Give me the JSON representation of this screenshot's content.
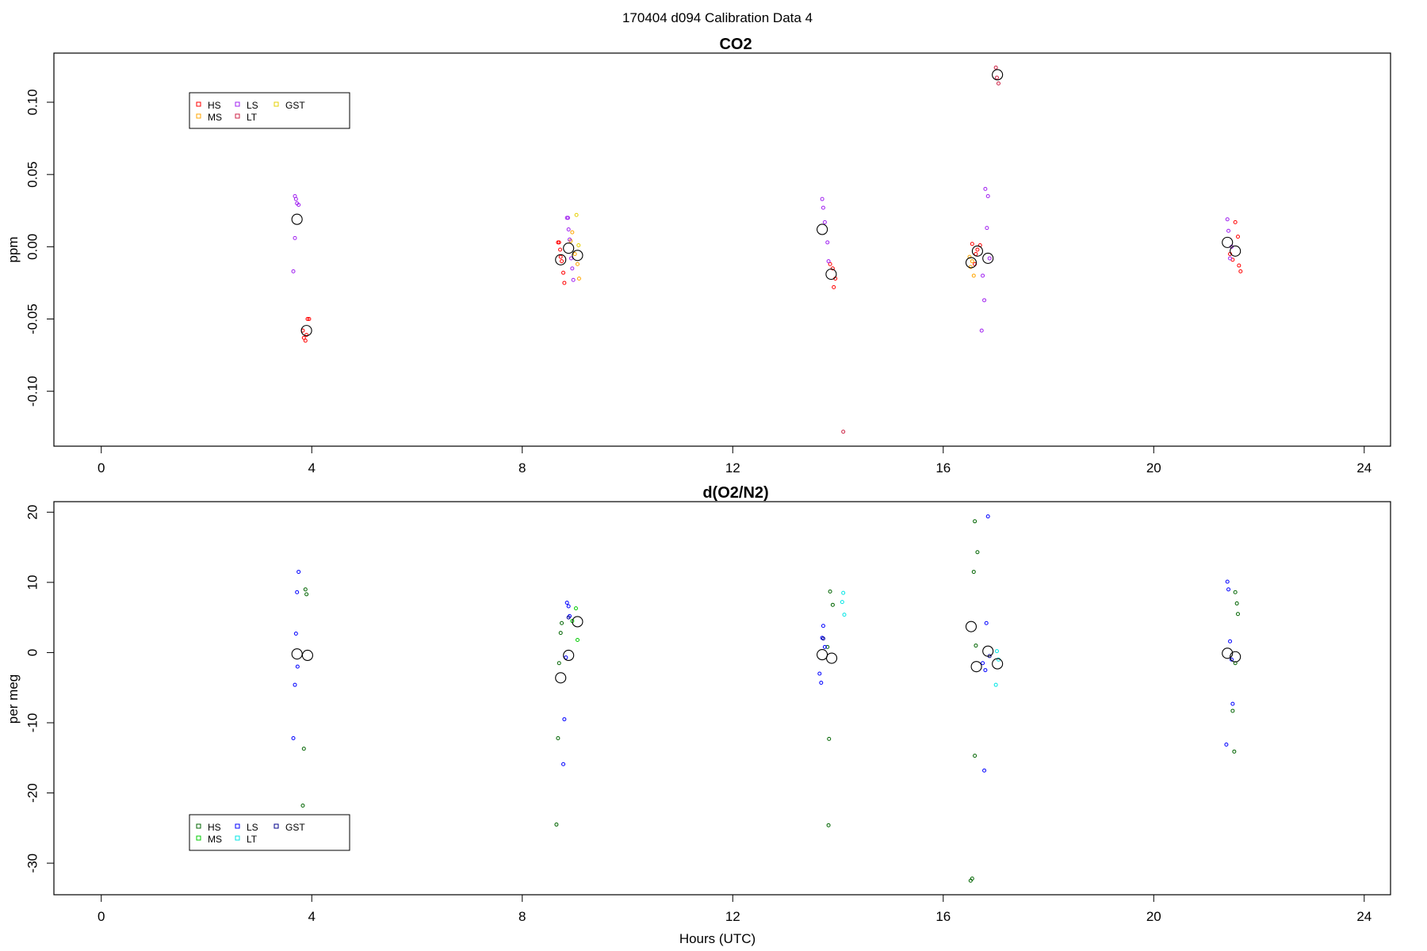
{
  "figure": {
    "title": "170404   d094   Calibration Data 4"
  },
  "chart_data": [
    {
      "type": "scatter",
      "title": "CO2",
      "xlabel": "",
      "ylabel": "ppm",
      "xlim": [
        -0.9,
        24.5
      ],
      "ylim": [
        -0.138,
        0.134
      ],
      "xticks": [
        0,
        4,
        8,
        12,
        16,
        20,
        24
      ],
      "yticks": [
        -0.1,
        -0.05,
        0.0,
        0.05,
        0.1
      ],
      "ytick_labels": [
        "-0.10",
        "-0.05",
        "0.00",
        "0.05",
        "0.10"
      ],
      "grid": false,
      "legend_position": "top-left",
      "legend": [
        "HS",
        "MS",
        "LS",
        "LT",
        "GST"
      ],
      "series": [
        {
          "name": "HS",
          "color": "#ff0000",
          "points": [
            [
              3.85,
              -0.063
            ],
            [
              3.9,
              -0.061
            ],
            [
              3.92,
              -0.05
            ],
            [
              3.88,
              -0.065
            ],
            [
              3.95,
              -0.05
            ],
            [
              3.83,
              -0.058
            ],
            [
              8.7,
              0.003
            ],
            [
              8.72,
              -0.002
            ],
            [
              8.75,
              -0.01
            ],
            [
              8.78,
              -0.018
            ],
            [
              8.8,
              -0.025
            ],
            [
              8.68,
              0.003
            ],
            [
              8.73,
              -0.007
            ],
            [
              13.85,
              -0.012
            ],
            [
              13.9,
              -0.015
            ],
            [
              13.95,
              -0.022
            ],
            [
              13.92,
              -0.028
            ],
            [
              16.55,
              0.002
            ],
            [
              16.62,
              -0.005
            ],
            [
              16.6,
              -0.012
            ],
            [
              16.7,
              0.001
            ],
            [
              16.65,
              -0.002
            ],
            [
              21.45,
              -0.005
            ],
            [
              21.55,
              0.017
            ],
            [
              21.6,
              0.007
            ],
            [
              21.62,
              -0.013
            ],
            [
              21.65,
              -0.017
            ],
            [
              21.5,
              -0.009
            ]
          ]
        },
        {
          "name": "MS",
          "color": "#ffa500",
          "points": [
            [
              8.95,
              0.01
            ],
            [
              9.0,
              -0.005
            ],
            [
              9.05,
              -0.012
            ],
            [
              9.08,
              -0.022
            ],
            [
              8.92,
              0.004
            ],
            [
              16.5,
              -0.007
            ],
            [
              16.55,
              -0.01
            ],
            [
              16.52,
              -0.014
            ],
            [
              16.58,
              -0.02
            ]
          ]
        },
        {
          "name": "LS",
          "color": "#a020f0",
          "points": [
            [
              3.68,
              0.035
            ],
            [
              3.7,
              0.033
            ],
            [
              3.75,
              0.029
            ],
            [
              3.72,
              0.03
            ],
            [
              3.68,
              0.006
            ],
            [
              3.65,
              -0.017
            ],
            [
              8.85,
              0.02
            ],
            [
              8.88,
              0.012
            ],
            [
              8.9,
              0.005
            ],
            [
              8.93,
              -0.008
            ],
            [
              8.95,
              -0.015
            ],
            [
              8.97,
              -0.023
            ],
            [
              8.87,
              0.02
            ],
            [
              13.7,
              0.033
            ],
            [
              13.72,
              0.027
            ],
            [
              13.75,
              0.017
            ],
            [
              13.8,
              0.003
            ],
            [
              13.82,
              -0.01
            ],
            [
              16.8,
              0.04
            ],
            [
              16.85,
              0.035
            ],
            [
              16.83,
              0.013
            ],
            [
              16.75,
              -0.02
            ],
            [
              16.78,
              -0.037
            ],
            [
              16.73,
              -0.058
            ],
            [
              16.88,
              -0.008
            ],
            [
              21.4,
              0.019
            ],
            [
              21.42,
              0.011
            ],
            [
              21.45,
              -0.008
            ],
            [
              21.48,
              0.0
            ]
          ]
        },
        {
          "name": "LT",
          "color": "#cc2244",
          "points": [
            [
              17.0,
              0.124
            ],
            [
              17.05,
              0.113
            ],
            [
              17.02,
              0.117
            ],
            [
              14.1,
              -0.128
            ]
          ]
        },
        {
          "name": "GST",
          "color": "#e6d000",
          "points": [
            [
              9.03,
              0.022
            ],
            [
              9.07,
              0.001
            ]
          ]
        },
        {
          "name": "",
          "color": "#000000",
          "marker": "large-circle",
          "points": [
            [
              3.72,
              0.019
            ],
            [
              3.9,
              -0.058
            ],
            [
              8.73,
              -0.009
            ],
            [
              8.88,
              -0.001
            ],
            [
              9.05,
              -0.006
            ],
            [
              13.7,
              0.012
            ],
            [
              13.87,
              -0.019
            ],
            [
              16.53,
              -0.011
            ],
            [
              16.65,
              -0.003
            ],
            [
              16.85,
              -0.008
            ],
            [
              17.03,
              0.119
            ],
            [
              21.4,
              0.003
            ],
            [
              21.55,
              -0.003
            ]
          ]
        }
      ]
    },
    {
      "type": "scatter",
      "title": "d(O2/N2)",
      "xlabel": "Hours (UTC)",
      "ylabel": "per meg",
      "xlim": [
        -0.9,
        24.5
      ],
      "ylim": [
        -34.5,
        21.5
      ],
      "xticks": [
        0,
        4,
        8,
        12,
        16,
        20,
        24
      ],
      "yticks": [
        -30,
        -20,
        -10,
        0,
        10,
        20
      ],
      "ytick_labels": [
        "-30",
        "-20",
        "-10",
        "0",
        "10",
        "20"
      ],
      "grid": false,
      "legend_position": "bottom-left",
      "legend": [
        "HS",
        "MS",
        "LS",
        "LT",
        "GST"
      ],
      "series": [
        {
          "name": "HS",
          "color": "#006400",
          "points": [
            [
              3.88,
              9.0
            ],
            [
              3.9,
              8.3
            ],
            [
              3.85,
              -13.7
            ],
            [
              3.83,
              -21.8
            ],
            [
              8.73,
              2.8
            ],
            [
              8.75,
              4.2
            ],
            [
              8.7,
              -1.5
            ],
            [
              8.68,
              -12.2
            ],
            [
              8.65,
              -24.5
            ],
            [
              13.85,
              8.7
            ],
            [
              13.9,
              6.8
            ],
            [
              13.8,
              0.8
            ],
            [
              13.83,
              -12.3
            ],
            [
              13.82,
              -24.6
            ],
            [
              16.6,
              18.7
            ],
            [
              16.65,
              14.3
            ],
            [
              16.58,
              11.5
            ],
            [
              16.62,
              1.0
            ],
            [
              16.6,
              -14.7
            ],
            [
              16.55,
              -32.2
            ],
            [
              16.52,
              -32.5
            ],
            [
              21.55,
              8.6
            ],
            [
              21.58,
              7.0
            ],
            [
              21.6,
              5.5
            ],
            [
              21.5,
              -8.3
            ],
            [
              21.53,
              -14.1
            ],
            [
              21.55,
              -1.5
            ]
          ]
        },
        {
          "name": "MS",
          "color": "#00cc00",
          "points": [
            [
              9.02,
              6.3
            ],
            [
              9.05,
              1.8
            ],
            [
              8.95,
              4.5
            ]
          ]
        },
        {
          "name": "LS",
          "color": "#0000ff",
          "points": [
            [
              3.75,
              11.5
            ],
            [
              3.72,
              8.6
            ],
            [
              3.7,
              2.7
            ],
            [
              3.73,
              -2.0
            ],
            [
              3.68,
              -4.6
            ],
            [
              3.65,
              -12.2
            ],
            [
              8.85,
              7.1
            ],
            [
              8.88,
              6.6
            ],
            [
              8.9,
              5.2
            ],
            [
              8.83,
              -0.7
            ],
            [
              8.8,
              -9.5
            ],
            [
              8.78,
              -15.9
            ],
            [
              13.72,
              3.8
            ],
            [
              13.7,
              2.1
            ],
            [
              13.75,
              0.8
            ],
            [
              13.65,
              -3.0
            ],
            [
              13.68,
              -4.3
            ],
            [
              16.85,
              19.4
            ],
            [
              16.82,
              4.2
            ],
            [
              16.8,
              -2.5
            ],
            [
              16.75,
              -1.5
            ],
            [
              16.78,
              -16.8
            ],
            [
              21.4,
              10.1
            ],
            [
              21.42,
              9.0
            ],
            [
              21.45,
              1.6
            ],
            [
              21.5,
              -7.3
            ],
            [
              21.38,
              -13.1
            ],
            [
              21.48,
              -1.0
            ]
          ]
        },
        {
          "name": "LT",
          "color": "#00e5e5",
          "points": [
            [
              14.1,
              8.5
            ],
            [
              14.08,
              7.2
            ],
            [
              14.12,
              5.4
            ],
            [
              17.0,
              -4.6
            ],
            [
              17.05,
              -1.0
            ],
            [
              17.02,
              0.2
            ]
          ]
        },
        {
          "name": "GST",
          "color": "#00008b",
          "points": [
            [
              13.72,
              2.0
            ],
            [
              8.88,
              5.0
            ],
            [
              16.88,
              -0.5
            ]
          ]
        },
        {
          "name": "",
          "color": "#000000",
          "marker": "large-circle",
          "points": [
            [
              3.72,
              -0.2
            ],
            [
              3.92,
              -0.4
            ],
            [
              8.73,
              -3.6
            ],
            [
              8.88,
              -0.4
            ],
            [
              9.05,
              4.4
            ],
            [
              13.7,
              -0.3
            ],
            [
              13.88,
              -0.8
            ],
            [
              16.53,
              3.7
            ],
            [
              16.63,
              -2.0
            ],
            [
              16.85,
              0.2
            ],
            [
              17.03,
              -1.6
            ],
            [
              21.4,
              -0.1
            ],
            [
              21.55,
              -0.6
            ]
          ]
        }
      ]
    }
  ]
}
